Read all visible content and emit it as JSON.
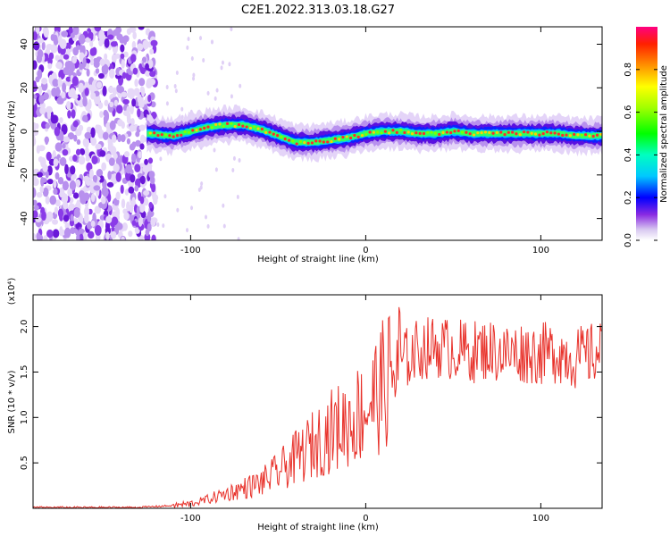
{
  "title": "C2E1.2022.313.03.18.G27",
  "chart_data": [
    {
      "type": "heatmap",
      "xlabel": "Height of straight line (km)",
      "ylabel": "Frequency (Hz)",
      "xlim": [
        -190,
        135
      ],
      "ylim": [
        -50,
        48
      ],
      "xticks": [
        -100,
        0,
        100
      ],
      "yticks": [
        -40,
        -20,
        0,
        20,
        40
      ],
      "colorbar": {
        "label": "Normalized spectral amplitude",
        "ticks": [
          0.0,
          0.2,
          0.4,
          0.6,
          0.8
        ],
        "range": [
          0,
          1
        ]
      },
      "ridge": {
        "x": [
          -125,
          -110,
          -100,
          -90,
          -80,
          -70,
          -60,
          -50,
          -40,
          -30,
          -20,
          -10,
          0,
          10,
          20,
          30,
          40,
          50,
          60,
          70,
          80,
          90,
          100,
          110,
          120,
          130
        ],
        "freq": [
          -1,
          -2,
          0,
          2,
          3,
          3,
          1,
          -2,
          -5,
          -5,
          -4,
          -3,
          -1,
          0,
          0,
          -1,
          -1,
          0,
          -1,
          -1,
          -1,
          -1,
          -1,
          -1,
          -2,
          -2
        ]
      },
      "noise_region_x": [
        -190,
        -120
      ]
    },
    {
      "type": "line",
      "xlabel": "Height of straight line (km)",
      "ylabel": "SNR (10 * v/v)",
      "yunit": "(x10⁴)",
      "xlim": [
        -190,
        135
      ],
      "ylim": [
        0,
        2.35
      ],
      "xticks": [
        -100,
        0,
        100
      ],
      "yticks": [
        0.5,
        1.0,
        1.5,
        2.0
      ],
      "line_color": "#e8312a",
      "series_trend": {
        "x": [
          -190,
          -160,
          -130,
          -110,
          -100,
          -90,
          -80,
          -70,
          -60,
          -50,
          -40,
          -30,
          -20,
          -10,
          0,
          10,
          20,
          30,
          40,
          50,
          60,
          70,
          80,
          90,
          100,
          110,
          120,
          130,
          135
        ],
        "y": [
          0.01,
          0.01,
          0.01,
          0.03,
          0.05,
          0.1,
          0.16,
          0.22,
          0.28,
          0.4,
          0.55,
          0.7,
          0.85,
          0.95,
          1.1,
          1.35,
          1.6,
          1.75,
          1.78,
          1.75,
          1.72,
          1.75,
          1.7,
          1.72,
          1.7,
          1.72,
          1.65,
          1.7,
          1.72
        ]
      }
    }
  ]
}
